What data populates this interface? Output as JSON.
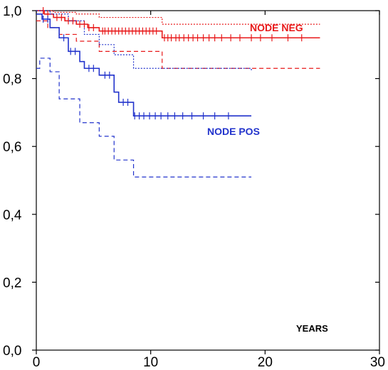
{
  "chart_data": {
    "type": "line",
    "title": "",
    "xlabel": "YEARS",
    "ylabel": "",
    "xlim": [
      0,
      30
    ],
    "ylim": [
      0,
      1.0
    ],
    "x_ticks": [
      "0",
      "10",
      "20",
      "30"
    ],
    "y_ticks": [
      "0,0",
      "0,2",
      "0,4",
      "0,6",
      "0,8",
      "1,0"
    ],
    "grid": false,
    "annotations": [
      {
        "text": "NODE NEG",
        "color": "#e8191a"
      },
      {
        "text": "NODE POS",
        "color": "#2233cc"
      }
    ],
    "series": [
      {
        "name": "NODE NEG",
        "style": "solid",
        "color": "#e8191a",
        "x": [
          0,
          0.7,
          1.5,
          2.5,
          3.5,
          4.5,
          5.5,
          11.0,
          24.8
        ],
        "y": [
          1.0,
          0.99,
          0.98,
          0.97,
          0.96,
          0.95,
          0.94,
          0.92,
          0.92
        ],
        "censor_x": [
          0.6,
          1.0,
          1.8,
          2.2,
          2.8,
          3.2,
          3.8,
          4.2,
          4.6,
          5.0,
          5.8,
          6.0,
          6.3,
          6.6,
          6.9,
          7.2,
          7.5,
          7.8,
          8.1,
          8.4,
          8.7,
          9.0,
          9.3,
          9.6,
          9.9,
          10.2,
          10.5,
          11.2,
          11.5,
          11.8,
          12.2,
          12.5,
          12.9,
          13.3,
          13.7,
          14.1,
          14.6,
          15.1,
          15.6,
          16.2,
          17.0,
          17.8,
          18.8,
          19.6,
          20.6,
          22.0,
          23.2
        ]
      },
      {
        "name": "NODE NEG upper CI",
        "style": "dotted",
        "color": "#e8191a",
        "x": [
          0,
          1.5,
          3.5,
          5.5,
          11.0,
          24.8
        ],
        "y": [
          1.0,
          0.995,
          0.99,
          0.98,
          0.96,
          0.96
        ]
      },
      {
        "name": "NODE NEG lower CI",
        "style": "dashed",
        "color": "#e8191a",
        "x": [
          0,
          1.0,
          2.0,
          3.5,
          5.5,
          11.0,
          24.8
        ],
        "y": [
          0.97,
          0.95,
          0.93,
          0.91,
          0.88,
          0.83,
          0.83
        ]
      },
      {
        "name": "NODE POS",
        "style": "solid",
        "color": "#2233cc",
        "x": [
          0,
          0.5,
          1.2,
          2.0,
          2.8,
          3.8,
          4.2,
          5.5,
          6.8,
          7.2,
          8.5,
          18.8
        ],
        "y": [
          0.99,
          0.975,
          0.95,
          0.92,
          0.88,
          0.85,
          0.83,
          0.81,
          0.76,
          0.73,
          0.69,
          0.69
        ],
        "censor_x": [
          0.6,
          1.0,
          2.4,
          3.0,
          3.4,
          4.6,
          5.0,
          6.0,
          6.4,
          7.6,
          8.0,
          8.6,
          9.0,
          9.4,
          9.9,
          10.4,
          10.9,
          11.5,
          12.1,
          12.8,
          13.6,
          14.6,
          15.6,
          16.8
        ]
      },
      {
        "name": "NODE POS upper CI",
        "style": "dotted",
        "color": "#2233cc",
        "x": [
          0,
          1.2,
          2.8,
          4.2,
          5.5,
          6.8,
          8.5,
          18.8
        ],
        "y": [
          1.0,
          0.99,
          0.97,
          0.93,
          0.9,
          0.87,
          0.83,
          0.82
        ]
      },
      {
        "name": "NODE POS lower CI",
        "style": "dashed",
        "color": "#2233cc",
        "x": [
          0,
          0.3,
          1.2,
          2.0,
          3.8,
          5.5,
          6.8,
          8.5,
          18.8
        ],
        "y": [
          0.83,
          0.86,
          0.82,
          0.74,
          0.67,
          0.63,
          0.56,
          0.51,
          0.51
        ]
      }
    ]
  }
}
